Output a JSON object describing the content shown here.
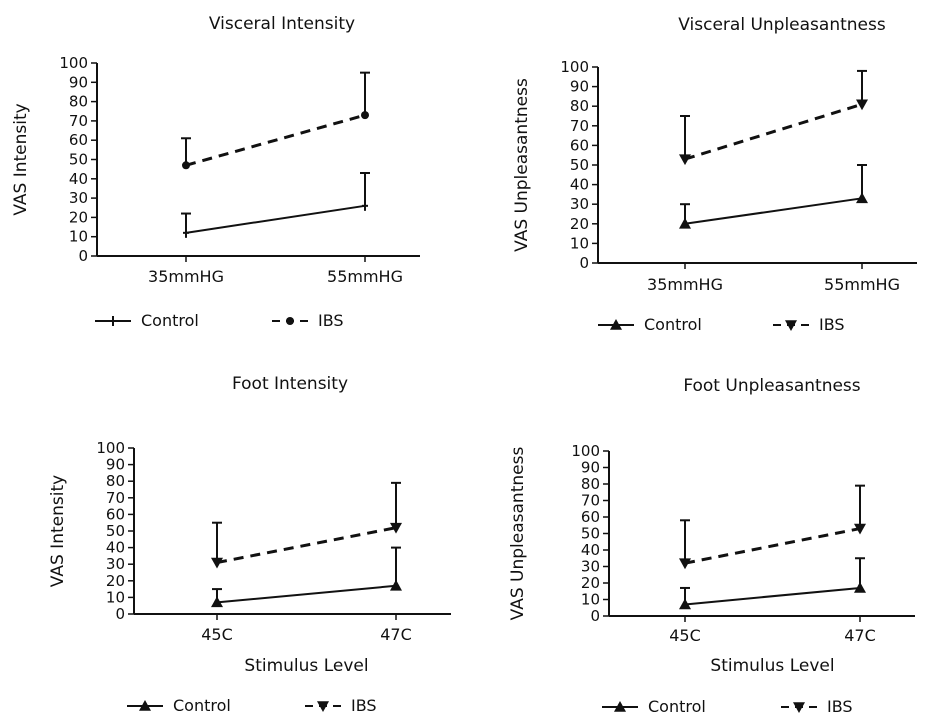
{
  "chart_data": [
    {
      "type": "line",
      "title": "Visceral Intensity",
      "ylabel": "VAS Intensity",
      "xlabel": "",
      "categories": [
        "35mmHG",
        "55mmHG"
      ],
      "ylim": [
        0,
        100
      ],
      "yticks": [
        0,
        10,
        20,
        30,
        40,
        50,
        60,
        70,
        80,
        90,
        100
      ],
      "series": [
        {
          "name": "Control",
          "values": [
            12,
            26
          ],
          "error_upper": [
            22,
            43
          ],
          "line_style": "solid",
          "marker": "plus"
        },
        {
          "name": "IBS",
          "values": [
            47,
            73
          ],
          "error_upper": [
            61,
            95
          ],
          "line_style": "dashed",
          "marker": "circle"
        }
      ],
      "legend": [
        {
          "label": "Control",
          "style": "solid",
          "marker": "plus"
        },
        {
          "label": "IBS",
          "style": "dashed",
          "marker": "circle"
        }
      ]
    },
    {
      "type": "line",
      "title": "Visceral Unpleasantness",
      "ylabel": "VAS Unpleasantness",
      "xlabel": "",
      "categories": [
        "35mmHG",
        "55mmHG"
      ],
      "ylim": [
        0,
        100
      ],
      "yticks": [
        0,
        10,
        20,
        30,
        40,
        50,
        60,
        70,
        80,
        90,
        100
      ],
      "series": [
        {
          "name": "Control",
          "values": [
            20,
            33
          ],
          "error_upper": [
            30,
            50
          ],
          "line_style": "solid",
          "marker": "triangle-up"
        },
        {
          "name": "IBS",
          "values": [
            53,
            81
          ],
          "error_upper": [
            75,
            98
          ],
          "line_style": "dashed",
          "marker": "triangle-down"
        }
      ],
      "legend": [
        {
          "label": "Control",
          "style": "solid",
          "marker": "triangle-up"
        },
        {
          "label": "IBS",
          "style": "dashed",
          "marker": "triangle-down"
        }
      ]
    },
    {
      "type": "line",
      "title": "Foot Intensity",
      "ylabel": "VAS  Intensity",
      "xlabel": "Stimulus Level",
      "categories": [
        "45C",
        "47C"
      ],
      "ylim": [
        0,
        100
      ],
      "yticks": [
        0,
        10,
        20,
        30,
        40,
        50,
        60,
        70,
        80,
        90,
        100
      ],
      "series": [
        {
          "name": "Control",
          "values": [
            7,
            17
          ],
          "error_upper": [
            15,
            40
          ],
          "line_style": "solid",
          "marker": "triangle-up"
        },
        {
          "name": "IBS",
          "values": [
            31,
            52
          ],
          "error_upper": [
            55,
            79
          ],
          "line_style": "dashed",
          "marker": "triangle-down"
        }
      ],
      "legend": [
        {
          "label": "Control",
          "style": "solid",
          "marker": "triangle-up"
        },
        {
          "label": "IBS",
          "style": "dashed",
          "marker": "triangle-down"
        }
      ]
    },
    {
      "type": "line",
      "title": "Foot Unpleasantness",
      "ylabel": "VAS  Unpleasantness",
      "xlabel": "Stimulus Level",
      "categories": [
        "45C",
        "47C"
      ],
      "ylim": [
        0,
        100
      ],
      "yticks": [
        0,
        10,
        20,
        30,
        40,
        50,
        60,
        70,
        80,
        90,
        100
      ],
      "series": [
        {
          "name": "Control",
          "values": [
            7,
            17
          ],
          "error_upper": [
            17,
            35
          ],
          "line_style": "solid",
          "marker": "triangle-up"
        },
        {
          "name": "IBS",
          "values": [
            32,
            53
          ],
          "error_upper": [
            58,
            79
          ],
          "line_style": "dashed",
          "marker": "triangle-down"
        }
      ],
      "legend": [
        {
          "label": "Control",
          "style": "solid",
          "marker": "triangle-up"
        },
        {
          "label": "IBS",
          "style": "dashed",
          "marker": "triangle-down"
        }
      ]
    }
  ]
}
